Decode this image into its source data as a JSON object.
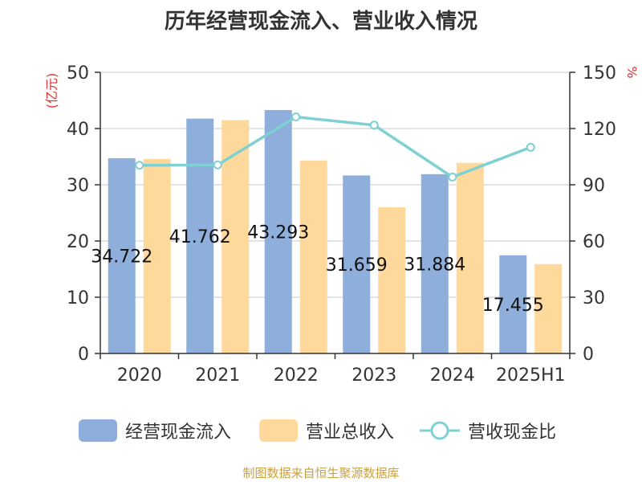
{
  "chart_data": {
    "type": "bar",
    "title": "历年经营现金流入、营业收入情况",
    "categories": [
      "2020",
      "2021",
      "2022",
      "2023",
      "2024",
      "2025H1"
    ],
    "y_left_label": "(亿元)",
    "y_right_label": "%",
    "y_left_range": [
      0,
      50
    ],
    "y_right_range": [
      0,
      150
    ],
    "y_left_ticks": [
      0,
      10,
      20,
      30,
      40,
      50
    ],
    "y_right_ticks": [
      0,
      30,
      60,
      90,
      120,
      150
    ],
    "grid": true,
    "legend_position": "bottom",
    "series": [
      {
        "name": "经营现金流入",
        "type": "bar",
        "axis": "left",
        "color": "#8eaedb",
        "values": [
          34.722,
          41.762,
          43.293,
          31.659,
          31.884,
          17.455
        ],
        "data_labels": [
          "34.722",
          "41.762",
          "43.293",
          "31.659",
          "31.884",
          "17.455"
        ]
      },
      {
        "name": "营业总收入",
        "type": "bar",
        "axis": "left",
        "color": "#fed99b",
        "values": [
          34.6,
          41.5,
          34.3,
          26.0,
          33.9,
          15.9
        ]
      },
      {
        "name": "营收现金比",
        "type": "line",
        "axis": "right",
        "color": "#7fd0d2",
        "values": [
          100.4,
          100.6,
          126.2,
          121.8,
          94.1,
          110.0
        ]
      }
    ]
  },
  "footer": {
    "source": "制图数据来自恒生聚源数据库"
  }
}
